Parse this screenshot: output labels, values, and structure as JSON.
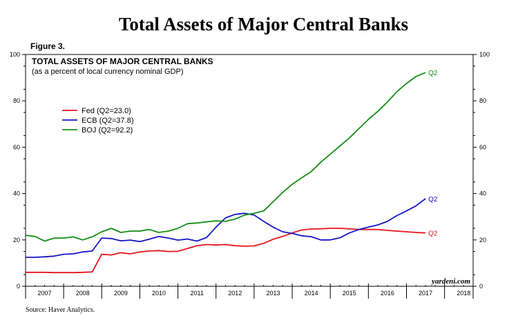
{
  "page": {
    "title": "Total Assets of Major Central Banks",
    "figure_label": "Figure 3.",
    "source": "Source: Haver Analytics."
  },
  "chart_data": {
    "type": "line",
    "title": "TOTAL ASSETS OF MAJOR CENTRAL BANKS",
    "subtitle": "(as a percent of local currency nominal GDP)",
    "xlabel": "",
    "ylabel": "",
    "xlim": [
      2007.0,
      2018.75
    ],
    "ylim": [
      0,
      100
    ],
    "yticks": [
      0,
      20,
      40,
      60,
      80,
      100
    ],
    "year_labels": [
      "2007",
      "2008",
      "2009",
      "2010",
      "2011",
      "2012",
      "2013",
      "2014",
      "2015",
      "2016",
      "2017",
      "2018"
    ],
    "watermark": "yardeni.com",
    "legend_position": "upper-left",
    "series": [
      {
        "name": "Fed (Q2=23.0)",
        "color": "#e8141b",
        "end_label": "Q2",
        "x": [
          2007.0,
          2007.25,
          2007.5,
          2007.75,
          2008.0,
          2008.25,
          2008.5,
          2008.75,
          2009.0,
          2009.25,
          2009.5,
          2009.75,
          2010.0,
          2010.25,
          2010.5,
          2010.75,
          2011.0,
          2011.25,
          2011.5,
          2011.75,
          2012.0,
          2012.25,
          2012.5,
          2012.75,
          2013.0,
          2013.25,
          2013.5,
          2013.75,
          2014.0,
          2014.25,
          2014.5,
          2014.75,
          2015.0,
          2015.25,
          2015.5,
          2015.75,
          2016.0,
          2016.25,
          2016.5,
          2016.75,
          2017.0,
          2017.25,
          2017.5
        ],
        "values": [
          6.0,
          6.0,
          6.0,
          5.9,
          5.9,
          5.9,
          6.0,
          6.2,
          13.8,
          13.5,
          14.5,
          14.0,
          14.8,
          15.2,
          15.4,
          15.0,
          15.1,
          16.3,
          17.5,
          18.0,
          17.8,
          18.0,
          17.5,
          17.3,
          17.4,
          18.5,
          20.3,
          21.5,
          23.0,
          24.3,
          24.7,
          24.8,
          25.0,
          25.0,
          24.8,
          24.5,
          24.5,
          24.5,
          24.1,
          23.8,
          23.5,
          23.2,
          23.0
        ]
      },
      {
        "name": "ECB (Q2=37.8)",
        "color": "#1414c8",
        "end_label": "Q2",
        "x": [
          2007.0,
          2007.25,
          2007.5,
          2007.75,
          2008.0,
          2008.25,
          2008.5,
          2008.75,
          2009.0,
          2009.25,
          2009.5,
          2009.75,
          2010.0,
          2010.25,
          2010.5,
          2010.75,
          2011.0,
          2011.25,
          2011.5,
          2011.75,
          2012.0,
          2012.25,
          2012.5,
          2012.75,
          2013.0,
          2013.25,
          2013.5,
          2013.75,
          2014.0,
          2014.25,
          2014.5,
          2014.75,
          2015.0,
          2015.25,
          2015.5,
          2015.75,
          2016.0,
          2016.25,
          2016.5,
          2016.75,
          2017.0,
          2017.25,
          2017.5
        ],
        "values": [
          12.5,
          12.5,
          12.7,
          13.0,
          13.8,
          14.0,
          14.8,
          15.2,
          20.8,
          20.6,
          19.6,
          19.9,
          19.3,
          20.3,
          21.5,
          20.8,
          19.9,
          20.4,
          19.5,
          21.0,
          25.5,
          29.5,
          31.0,
          31.5,
          30.7,
          28.0,
          25.5,
          23.5,
          22.8,
          21.8,
          21.4,
          20.0,
          20.0,
          20.9,
          23.0,
          24.5,
          25.5,
          26.5,
          28.0,
          30.5,
          32.5,
          34.7,
          37.8
        ]
      },
      {
        "name": "BOJ (Q2=92.2)",
        "color": "#128c12",
        "end_label": "Q2",
        "x": [
          2007.0,
          2007.25,
          2007.5,
          2007.75,
          2008.0,
          2008.25,
          2008.5,
          2008.75,
          2009.0,
          2009.25,
          2009.5,
          2009.75,
          2010.0,
          2010.25,
          2010.5,
          2010.75,
          2011.0,
          2011.25,
          2011.5,
          2011.75,
          2012.0,
          2012.25,
          2012.5,
          2012.75,
          2013.0,
          2013.25,
          2013.5,
          2013.75,
          2014.0,
          2014.25,
          2014.5,
          2014.75,
          2015.0,
          2015.25,
          2015.5,
          2015.75,
          2016.0,
          2016.25,
          2016.5,
          2016.75,
          2017.0,
          2017.25,
          2017.5
        ],
        "values": [
          22.0,
          21.5,
          19.5,
          20.8,
          20.8,
          21.3,
          20.0,
          21.3,
          23.5,
          25.0,
          23.2,
          23.8,
          23.8,
          24.5,
          23.2,
          23.8,
          25.0,
          27.0,
          27.3,
          27.8,
          28.2,
          28.0,
          29.0,
          30.7,
          31.5,
          32.5,
          36.5,
          40.5,
          44.0,
          46.8,
          49.5,
          53.5,
          57.0,
          60.5,
          64.0,
          68.0,
          72.0,
          75.5,
          79.5,
          84.0,
          87.5,
          90.5,
          92.2
        ]
      }
    ]
  }
}
